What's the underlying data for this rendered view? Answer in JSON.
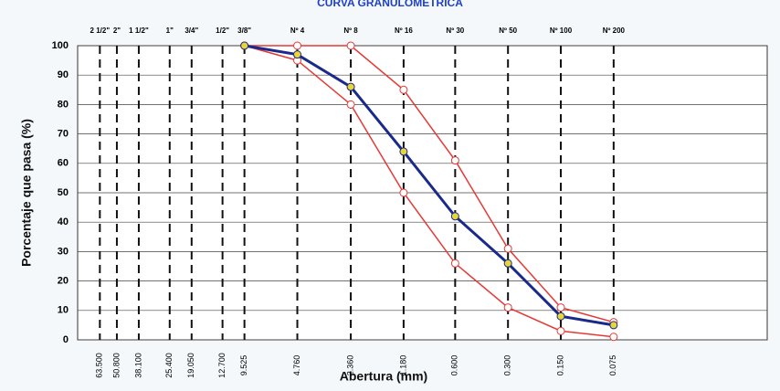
{
  "chart_data": {
    "type": "line",
    "title": "CURVA GRANULOMETRICA",
    "x_label": "Abertura (mm)",
    "y_label": "Porcentaje que pasa (%)",
    "x_scale": "log",
    "x_reversed": true,
    "xlim": [
      85,
      0.01
    ],
    "ylim": [
      0,
      100
    ],
    "xticks": [
      {
        "value": 63.5,
        "label": "63.500"
      },
      {
        "value": 50.8,
        "label": "50.800"
      },
      {
        "value": 38.1,
        "label": "38.100"
      },
      {
        "value": 25.4,
        "label": "25.400"
      },
      {
        "value": 19.05,
        "label": "19.050"
      },
      {
        "value": 12.7,
        "label": "12.700"
      },
      {
        "value": 9.525,
        "label": "9.525"
      },
      {
        "value": 4.76,
        "label": "4.760"
      },
      {
        "value": 2.36,
        "label": "2.360"
      },
      {
        "value": 1.18,
        "label": "1.180"
      },
      {
        "value": 0.6,
        "label": "0.600"
      },
      {
        "value": 0.3,
        "label": "0.300"
      },
      {
        "value": 0.15,
        "label": "0.150"
      },
      {
        "value": 0.075,
        "label": "0.075"
      }
    ],
    "sieve_labels": [
      "2 1/2\"",
      "2\"",
      "1 1/2\"",
      "1\"",
      "3/4\"",
      "1/2\"",
      "3/8\"",
      "Nº 4",
      "Nº 8",
      "Nº 16",
      "Nº 30",
      "Nº 50",
      "Nº 100",
      "Nº 200"
    ],
    "yticks": [
      0,
      10,
      20,
      30,
      40,
      50,
      60,
      70,
      80,
      90,
      100
    ],
    "grid": true,
    "x": [
      9.525,
      4.76,
      2.36,
      1.18,
      0.6,
      0.3,
      0.15,
      0.075
    ],
    "series": [
      {
        "color": "#e53935",
        "marker_fill": "#ffffff",
        "values": [
          100,
          100,
          100,
          85,
          61,
          31,
          11,
          6
        ]
      },
      {
        "color": "#e53935",
        "marker_fill": "#ffffff",
        "values": [
          100,
          95,
          80,
          50,
          26,
          11,
          3,
          1
        ]
      },
      {
        "color": "#1a2a8a",
        "marker_fill": "#e8d634",
        "values": [
          100,
          97,
          86,
          64,
          42,
          26,
          8,
          5
        ]
      }
    ]
  }
}
